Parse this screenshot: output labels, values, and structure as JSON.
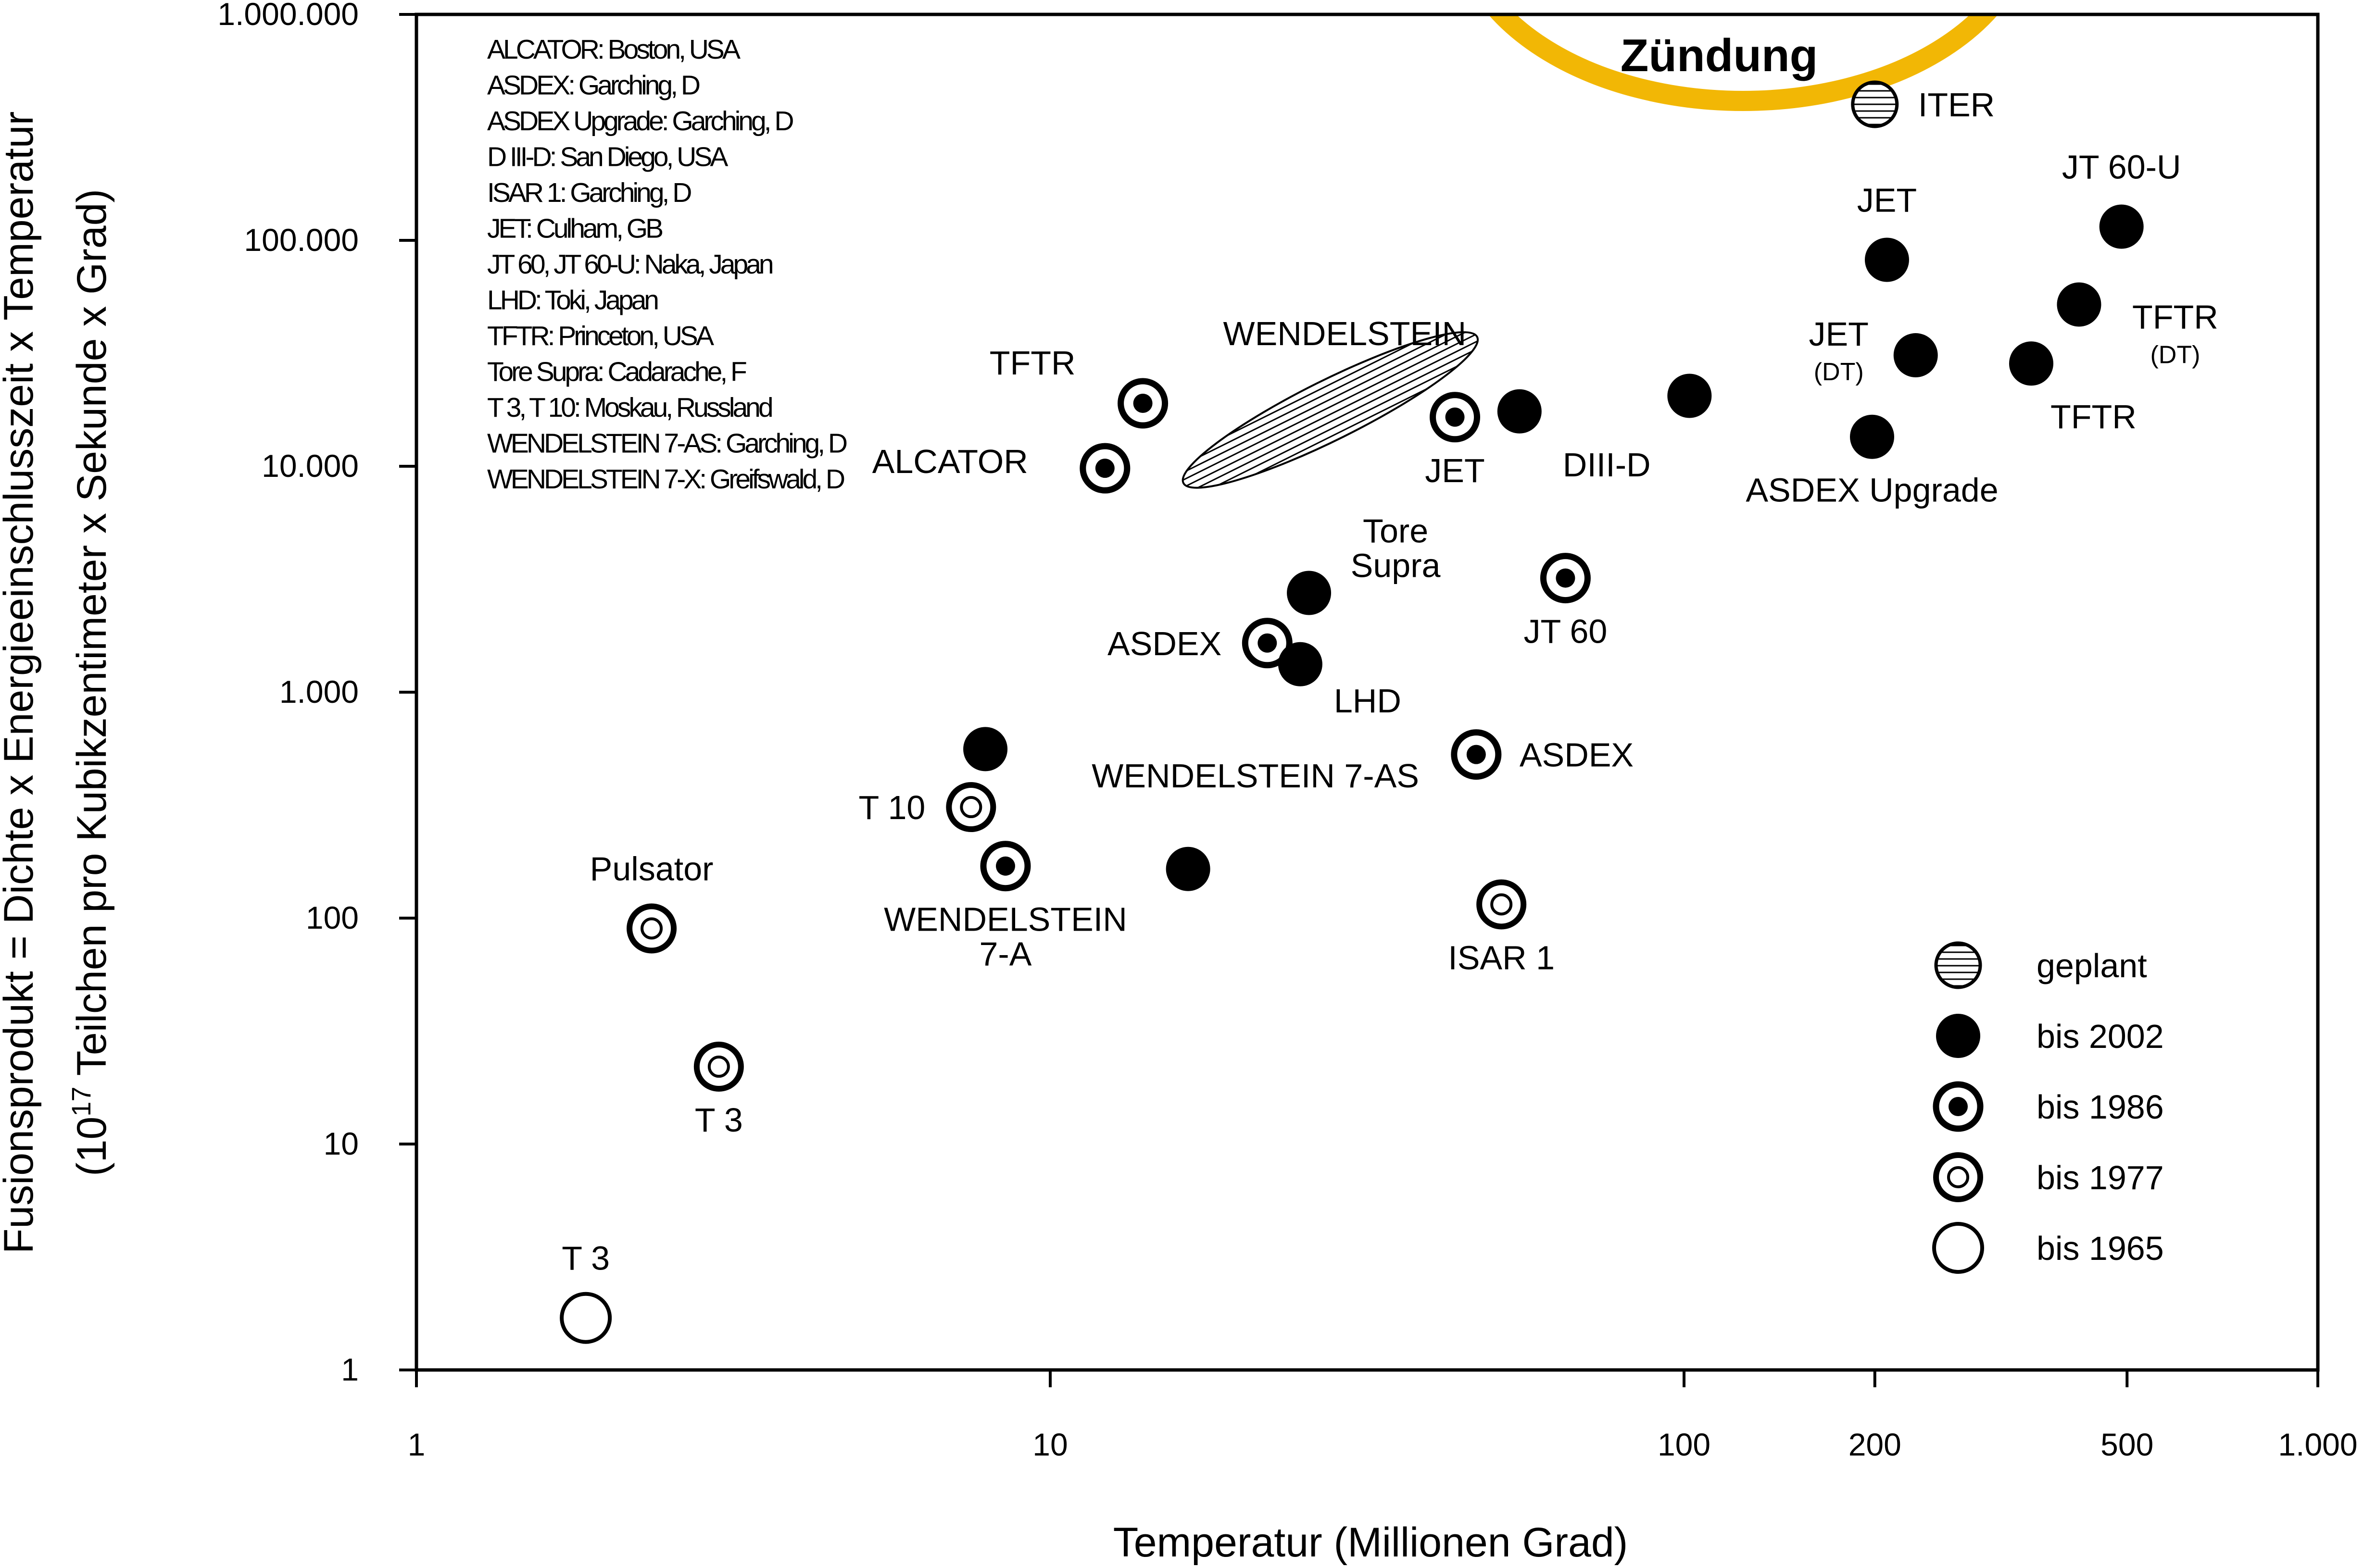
{
  "chart_data": {
    "type": "scatter",
    "x_scale": "log",
    "y_scale": "log",
    "xlim": [
      1,
      1000
    ],
    "ylim": [
      1,
      1000000
    ],
    "xlabel": "Temperatur  (Millionen Grad)",
    "ylabel_line1": "Fusionsprodukt  = Dichte x Energieeinschlusszeit x Temperatur",
    "ylabel_line2_pre": "(10",
    "ylabel_line2_sup": "17",
    "ylabel_line2_post": " Teilchen pro Kubikzentimeter x Sekunde x Grad)",
    "x_ticks": [
      {
        "value": 1,
        "label": "1"
      },
      {
        "value": 10,
        "label": "10"
      },
      {
        "value": 100,
        "label": "100"
      },
      {
        "value": 200,
        "label": "200"
      },
      {
        "value": 500,
        "label": "500"
      },
      {
        "value": 1000,
        "label": "1.000"
      }
    ],
    "y_ticks": [
      {
        "value": 1,
        "label": "1"
      },
      {
        "value": 10,
        "label": "10"
      },
      {
        "value": 100,
        "label": "100"
      },
      {
        "value": 1000,
        "label": "1.000"
      },
      {
        "value": 10000,
        "label": "10.000"
      },
      {
        "value": 100000,
        "label": "100.000"
      },
      {
        "value": 1000000,
        "label": "1.000.000"
      }
    ],
    "ignition_label": "Zündung",
    "ignition_color": "#f2b705",
    "device_list": [
      "ALCATOR: Boston, USA",
      "ASDEX: Garching, D",
      "ASDEX Upgrade: Garching, D",
      "D III-D: San Diego, USA",
      "ISAR 1: Garching, D",
      "JET: Culham, GB",
      "JT 60, JT 60-U: Naka, Japan",
      "LHD: Toki, Japan",
      "TFTR: Princeton, USA",
      "Tore Supra: Cadarache, F",
      "T 3, T 10: Moskau, Russland",
      "WENDELSTEIN 7-AS: Garching, D",
      "WENDELSTEIN 7-X: Greifswald, D"
    ],
    "legend": [
      {
        "style": "planned",
        "label": "geplant"
      },
      {
        "style": "2002",
        "label": "bis  2002"
      },
      {
        "style": "1986",
        "label": "bis  1986"
      },
      {
        "style": "1977",
        "label": "bis  1977"
      },
      {
        "style": "1965",
        "label": "bis  1965"
      }
    ],
    "wendelstein_region": {
      "label": "WENDELSTEIN",
      "x_range": [
        17,
        45
      ],
      "y_range": [
        9000,
        35000
      ]
    },
    "points": [
      {
        "x": 1.85,
        "y": 1.7,
        "style": "1965",
        "label": "T 3",
        "label_pos": "above"
      },
      {
        "x": 2.35,
        "y": 90,
        "style": "1977",
        "label": "Pulsator",
        "label_pos": "above"
      },
      {
        "x": 3.0,
        "y": 22,
        "style": "1977",
        "label": "T 3",
        "label_pos": "below"
      },
      {
        "x": 7.5,
        "y": 310,
        "style": "1977",
        "label": "T 10",
        "label_pos": "left"
      },
      {
        "x": 8.5,
        "y": 170,
        "style": "1986",
        "label": "WENDELSTEIN|7-A",
        "label_pos": "below"
      },
      {
        "x": 7.9,
        "y": 560,
        "style": "2002",
        "label": "",
        "label_pos": "none"
      },
      {
        "x": 16.5,
        "y": 165,
        "style": "2002",
        "label": "WENDELSTEIN 7-AS",
        "label_pos": "above-left"
      },
      {
        "x": 12.2,
        "y": 9800,
        "style": "1986",
        "label": "ALCATOR",
        "label_pos": "right-far"
      },
      {
        "x": 14.0,
        "y": 19000,
        "style": "1986",
        "label": "TFTR",
        "label_pos": "above-left"
      },
      {
        "x": 22.0,
        "y": 1650,
        "style": "1986",
        "label": "ASDEX",
        "label_pos": "left"
      },
      {
        "x": 25.6,
        "y": 2750,
        "style": "2002",
        "label": "Tore|Supra",
        "label_pos": "above-right"
      },
      {
        "x": 24.8,
        "y": 1330,
        "style": "2002",
        "label": "LHD",
        "label_pos": "below-right"
      },
      {
        "x": 43.5,
        "y": 16500,
        "style": "1986",
        "label": "JET",
        "label_pos": "below"
      },
      {
        "x": 55.0,
        "y": 17500,
        "style": "2002",
        "label": "DIII-D",
        "label_pos": "below-right"
      },
      {
        "x": 65.0,
        "y": 3200,
        "style": "1986",
        "label": "JT 60",
        "label_pos": "below"
      },
      {
        "x": 47.0,
        "y": 530,
        "style": "1986",
        "label": "ASDEX",
        "label_pos": "right"
      },
      {
        "x": 51.5,
        "y": 115,
        "style": "1977",
        "label": "ISAR 1",
        "label_pos": "below"
      },
      {
        "x": 102,
        "y": 20500,
        "style": "2002",
        "label": "",
        "label_pos": "none"
      },
      {
        "x": 198,
        "y": 13500,
        "style": "2002",
        "label": "ASDEX Upgrade",
        "label_pos": "below"
      },
      {
        "x": 232,
        "y": 31000,
        "style": "2002",
        "label": "JET|(DT)",
        "label_pos": "left"
      },
      {
        "x": 209,
        "y": 82000,
        "style": "2002",
        "label": "JET",
        "label_pos": "above"
      },
      {
        "x": 353,
        "y": 28500,
        "style": "2002",
        "label": "TFTR",
        "label_pos": "below-right"
      },
      {
        "x": 420,
        "y": 52000,
        "style": "2002",
        "label": "TFTR|(DT)",
        "label_pos": "right"
      },
      {
        "x": 490,
        "y": 115000,
        "style": "2002",
        "label": "JT 60-U",
        "label_pos": "above"
      },
      {
        "x": 200,
        "y": 400000,
        "style": "planned",
        "label": "ITER",
        "label_pos": "right"
      }
    ]
  }
}
